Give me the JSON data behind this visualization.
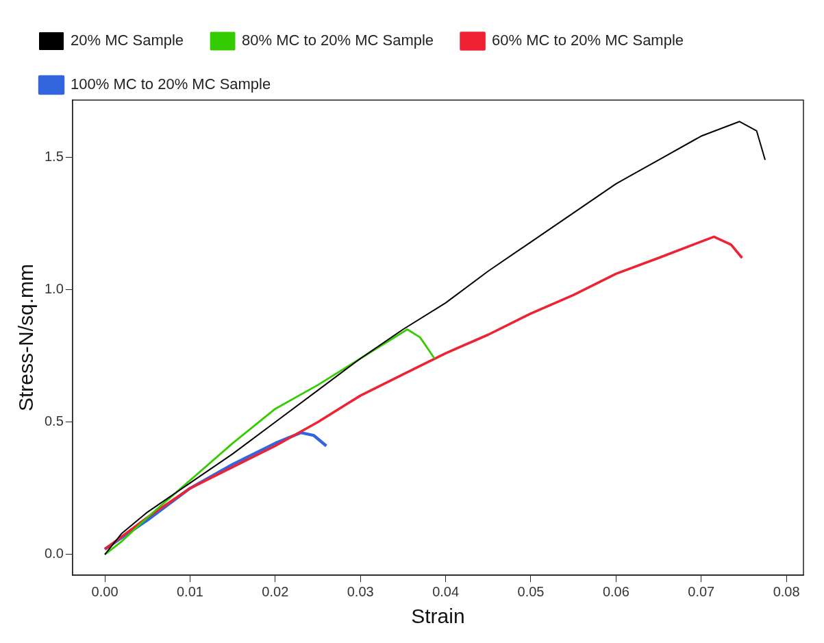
{
  "chart_data": {
    "type": "line",
    "xlabel": "Strain",
    "ylabel": "Stress-N/sq.mm",
    "xlim": [
      -0.0038,
      0.082
    ],
    "ylim": [
      -0.078,
      1.716
    ],
    "xticks": [
      {
        "value": 0,
        "label": "0.00"
      },
      {
        "value": 0.01,
        "label": "0.01"
      },
      {
        "value": 0.02,
        "label": "0.02"
      },
      {
        "value": 0.03,
        "label": "0.03"
      },
      {
        "value": 0.04,
        "label": "0.04"
      },
      {
        "value": 0.05,
        "label": "0.05"
      },
      {
        "value": 0.06,
        "label": "0.06"
      },
      {
        "value": 0.07,
        "label": "0.07"
      },
      {
        "value": 0.08,
        "label": "0.08"
      }
    ],
    "yticks": [
      {
        "value": 0,
        "label": "0.0"
      },
      {
        "value": 0.5,
        "label": "0.5"
      },
      {
        "value": 1,
        "label": "1.0"
      },
      {
        "value": 1.5,
        "label": "1.5"
      }
    ],
    "grid": false,
    "legend": "top",
    "marker": "none",
    "line_style": "solid",
    "series": [
      {
        "name": "20% MC Sample",
        "color": "#000000",
        "x": [
          0,
          0.002,
          0.005,
          0.01,
          0.015,
          0.02,
          0.025,
          0.03,
          0.035,
          0.04,
          0.045,
          0.05,
          0.055,
          0.06,
          0.065,
          0.07,
          0.0745,
          0.0765,
          0.0775
        ],
        "values": [
          0,
          0.08,
          0.16,
          0.27,
          0.38,
          0.5,
          0.62,
          0.74,
          0.85,
          0.95,
          1.07,
          1.18,
          1.29,
          1.4,
          1.49,
          1.58,
          1.635,
          1.6,
          1.49
        ]
      },
      {
        "name": "80% MC to 20% MC Sample",
        "color": "#33cc00",
        "x": [
          0,
          0.002,
          0.005,
          0.01,
          0.015,
          0.02,
          0.025,
          0.03,
          0.0355,
          0.037,
          0.0387
        ],
        "values": [
          0,
          0.05,
          0.14,
          0.28,
          0.42,
          0.55,
          0.64,
          0.74,
          0.85,
          0.82,
          0.74
        ]
      },
      {
        "name": "60% MC to 20% MC Sample",
        "color": "#ee2233",
        "x": [
          0,
          0.005,
          0.01,
          0.015,
          0.02,
          0.025,
          0.03,
          0.035,
          0.04,
          0.045,
          0.05,
          0.055,
          0.06,
          0.065,
          0.0715,
          0.0735,
          0.0748
        ],
        "values": [
          0.02,
          0.14,
          0.25,
          0.33,
          0.41,
          0.5,
          0.6,
          0.68,
          0.76,
          0.83,
          0.91,
          0.98,
          1.06,
          1.12,
          1.2,
          1.17,
          1.12
        ]
      },
      {
        "name": "100% MC to 20% MC Sample",
        "color": "#3366dd",
        "x": [
          0,
          0.005,
          0.01,
          0.015,
          0.02,
          0.023,
          0.0245,
          0.026
        ],
        "values": [
          0.02,
          0.13,
          0.25,
          0.34,
          0.42,
          0.46,
          0.45,
          0.41
        ]
      }
    ]
  }
}
